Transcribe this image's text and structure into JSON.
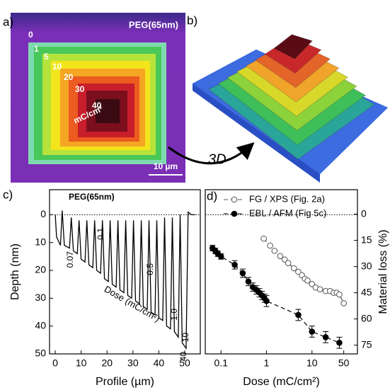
{
  "image_panels": {
    "a": {
      "label": "a)",
      "title": "PEG(65nm)",
      "doses": [
        0,
        1,
        5,
        10,
        20,
        30,
        40
      ],
      "unit": "mC/cm²",
      "scale_bar": "10 µm"
    },
    "b": {
      "label": "b)",
      "arrow_label": "3D"
    }
  },
  "chart_data": [
    {
      "type": "line",
      "panel_label": "c)",
      "annotation": "PEG(65nm)",
      "dose_labels": [
        "0.07",
        "0.1",
        "0.5",
        "1.0",
        "10",
        "40"
      ],
      "dose_axis_label": "Dose (mC/cm²)",
      "xlabel": "Profile (µm)",
      "ylabel": "Depth (nm)",
      "color": "#000000",
      "x": [
        0,
        0.5,
        2,
        2.7,
        3.5,
        5.5,
        6.2,
        7,
        8.5,
        9.2,
        10,
        11.5,
        12.2,
        13,
        14.5,
        15.2,
        16,
        17.5,
        18.2,
        19,
        20.5,
        21.2,
        22,
        23.5,
        24.2,
        25,
        26.5,
        27.2,
        28,
        29.5,
        30.2,
        31,
        32.5,
        33.2,
        34,
        35.5,
        36.2,
        37,
        38.5,
        39.2,
        40,
        41.5,
        42.2,
        43,
        44.5,
        45.2,
        46,
        47.5,
        48.2,
        49,
        50.5,
        51.3,
        52.5,
        54
      ],
      "values": [
        0,
        8,
        11,
        -1.5,
        11,
        12,
        1,
        13,
        14,
        2,
        16,
        17,
        2,
        18,
        19,
        2,
        20,
        21,
        2,
        23,
        24,
        2,
        25,
        26,
        2,
        27,
        28,
        2,
        29,
        30,
        2,
        31,
        32,
        2,
        33,
        34,
        2,
        35,
        36,
        2,
        37,
        38,
        1,
        40,
        41,
        1,
        42,
        44,
        0,
        46,
        48,
        -1,
        0,
        0
      ],
      "xlim": [
        -2.2,
        56
      ],
      "ylim": [
        50,
        -9
      ],
      "xticks": [
        0,
        10,
        20,
        30,
        40,
        50
      ],
      "yticks": [
        0,
        10,
        20,
        30,
        40,
        50
      ],
      "reference_line": 0
    },
    {
      "type": "scatter",
      "panel_label": "d)",
      "xlabel": "Dose (mC/cm²)",
      "y2label": "Material loss (%)",
      "log_x": true,
      "dashed": true,
      "xlim": [
        0.045,
        100
      ],
      "ylim": [
        50,
        -9
      ],
      "y2lim": [
        80,
        -14
      ],
      "xticks": [
        0.1,
        1,
        10,
        50
      ],
      "y2ticks": [
        0,
        15,
        30,
        45,
        60,
        75
      ],
      "reference_line": 0,
      "legend": "top",
      "series": [
        {
          "name": "FG / XPS (Fig. 2a)",
          "color": "#555555",
          "marker": "open",
          "axis": "y2",
          "x": [
            0.87,
            1.2,
            1.5,
            2,
            2.5,
            3,
            4,
            5,
            6,
            7,
            8,
            10,
            12,
            15,
            20,
            25,
            30,
            35,
            40,
            50
          ],
          "values": [
            14,
            18,
            21,
            24,
            26,
            28,
            31,
            33,
            35,
            37,
            38,
            40,
            42,
            43,
            44,
            44,
            45,
            45,
            46,
            51
          ]
        },
        {
          "name": "EBL / AFM (Fig 5c)",
          "color": "#000000",
          "marker": "filled",
          "x": [
            0.065,
            0.075,
            0.085,
            0.1,
            0.2,
            0.3,
            0.4,
            0.5,
            0.6,
            0.7,
            0.8,
            0.9,
            1,
            5,
            10,
            20,
            40
          ],
          "values": [
            12,
            13,
            14,
            15,
            18,
            21,
            24,
            26,
            27,
            28,
            29,
            30,
            31,
            36,
            42,
            44,
            46
          ],
          "errors": [
            1,
            1,
            1,
            1,
            1.5,
            1.5,
            1.5,
            1.5,
            1.5,
            1.5,
            1.5,
            1.5,
            2,
            2,
            2,
            2,
            2
          ]
        }
      ]
    }
  ]
}
